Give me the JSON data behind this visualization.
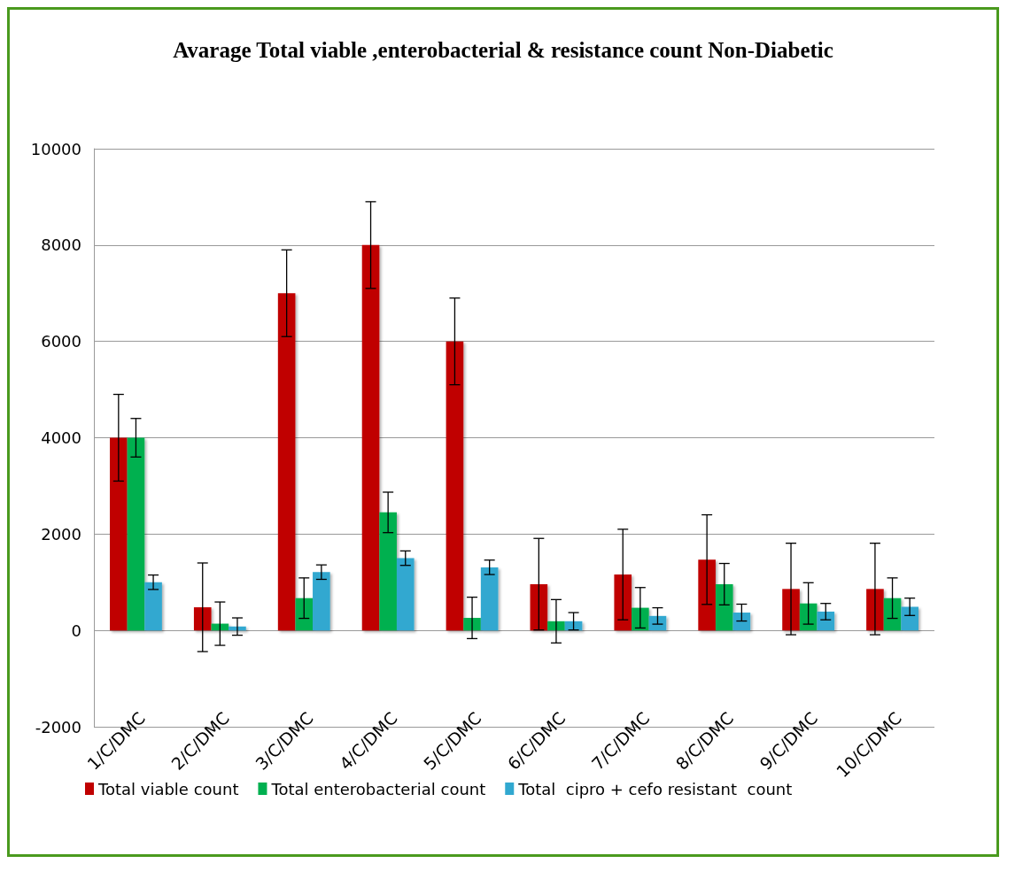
{
  "chart_data": {
    "type": "bar",
    "title": "Avarage Total viable ,enterobacterial & resistance count Non-Diabetic",
    "categories": [
      "1/C/DMC",
      "2/C/DMC",
      "3/C/DMC",
      "4/C/DMC",
      "5/C/DMC",
      "6/C/DMC",
      "7/C/DMC",
      "8/C/DMC",
      "9/C/DMC",
      "10/C/DMC"
    ],
    "series": [
      {
        "name": "Total viable count",
        "color": "#c00000",
        "values": [
          4000,
          480,
          7000,
          8000,
          6000,
          960,
          1160,
          1470,
          860,
          860
        ],
        "errors": [
          900,
          920,
          900,
          900,
          900,
          950,
          940,
          930,
          950,
          950
        ]
      },
      {
        "name": "Total enterobacterial count",
        "color": "#00b050",
        "values": [
          4000,
          140,
          670,
          2450,
          260,
          190,
          470,
          960,
          560,
          670
        ],
        "errors": [
          400,
          450,
          420,
          420,
          430,
          450,
          420,
          430,
          430,
          420
        ]
      },
      {
        "name": "Total  cipro + cefo resistant  count",
        "color": "#31a8d0",
        "values": [
          1000,
          80,
          1210,
          1500,
          1310,
          190,
          300,
          370,
          390,
          490
        ],
        "errors": [
          150,
          180,
          150,
          150,
          150,
          180,
          170,
          175,
          170,
          180
        ]
      }
    ],
    "ylim": [
      -2000,
      10000
    ],
    "yticks": [
      -2000,
      0,
      2000,
      4000,
      6000,
      8000,
      10000
    ],
    "grid": "y",
    "legend": "bottom"
  }
}
